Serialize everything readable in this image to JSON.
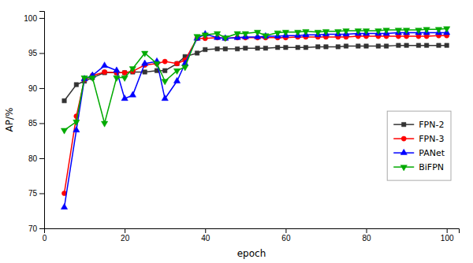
{
  "chart_data": {
    "type": "line",
    "xlabel": "epoch",
    "ylabel": "AP/%",
    "xlim": [
      0,
      103
    ],
    "ylim": [
      70,
      101
    ],
    "xticks": [
      0,
      20,
      40,
      60,
      80,
      100
    ],
    "yticks": [
      70,
      75,
      80,
      85,
      90,
      95,
      100
    ],
    "grid": false,
    "legend": "right",
    "x": [
      5,
      8,
      10,
      12,
      15,
      18,
      20,
      22,
      25,
      28,
      30,
      33,
      35,
      38,
      40,
      43,
      45,
      48,
      50,
      53,
      55,
      58,
      60,
      63,
      65,
      68,
      70,
      73,
      75,
      78,
      80,
      83,
      85,
      88,
      90,
      93,
      95,
      98,
      100
    ],
    "series": [
      {
        "name": "FPN-2",
        "color": "#333333",
        "marker": "square",
        "values": [
          88.2,
          90.5,
          91.0,
          91.5,
          92.2,
          92.2,
          92.2,
          92.3,
          92.3,
          92.5,
          92.5,
          93.5,
          94.5,
          95.0,
          95.5,
          95.6,
          95.6,
          95.6,
          95.7,
          95.7,
          95.7,
          95.8,
          95.8,
          95.8,
          95.8,
          95.9,
          95.9,
          95.9,
          96.0,
          96.0,
          96.0,
          96.0,
          96.0,
          96.1,
          96.1,
          96.1,
          96.1,
          96.1,
          96.1
        ]
      },
      {
        "name": "FPN-3",
        "color": "#ff0000",
        "marker": "circle",
        "values": [
          75.0,
          86.0,
          91.2,
          91.8,
          92.3,
          92.2,
          92.2,
          92.4,
          93.3,
          93.5,
          93.8,
          93.5,
          94.0,
          97.1,
          97.1,
          97.2,
          97.1,
          97.2,
          97.2,
          97.2,
          97.2,
          97.2,
          97.2,
          97.3,
          97.3,
          97.3,
          97.3,
          97.3,
          97.3,
          97.4,
          97.4,
          97.4,
          97.4,
          97.4,
          97.4,
          97.4,
          97.4,
          97.5,
          97.5
        ]
      },
      {
        "name": "PANet",
        "color": "#0000ff",
        "marker": "triangle-up",
        "values": [
          73.0,
          84.0,
          91.3,
          91.8,
          93.2,
          92.5,
          88.5,
          89.0,
          93.5,
          93.8,
          88.5,
          91.0,
          93.5,
          97.1,
          97.7,
          97.2,
          97.1,
          97.2,
          97.3,
          97.3,
          97.4,
          97.4,
          97.5,
          97.5,
          97.6,
          97.6,
          97.7,
          97.7,
          97.7,
          97.8,
          97.8,
          97.8,
          97.8,
          97.9,
          97.9,
          97.9,
          97.9,
          97.9,
          97.9
        ]
      },
      {
        "name": "BiFPN",
        "color": "#00aa00",
        "marker": "triangle-down",
        "values": [
          84.0,
          85.2,
          91.5,
          91.5,
          85.0,
          91.5,
          91.5,
          92.8,
          95.0,
          93.5,
          91.0,
          92.5,
          93.0,
          97.4,
          97.6,
          97.8,
          97.2,
          97.8,
          97.8,
          98.0,
          97.5,
          97.9,
          98.0,
          98.0,
          98.1,
          98.0,
          98.1,
          98.1,
          98.2,
          98.2,
          98.2,
          98.2,
          98.3,
          98.3,
          98.3,
          98.3,
          98.4,
          98.4,
          98.5
        ]
      }
    ]
  }
}
